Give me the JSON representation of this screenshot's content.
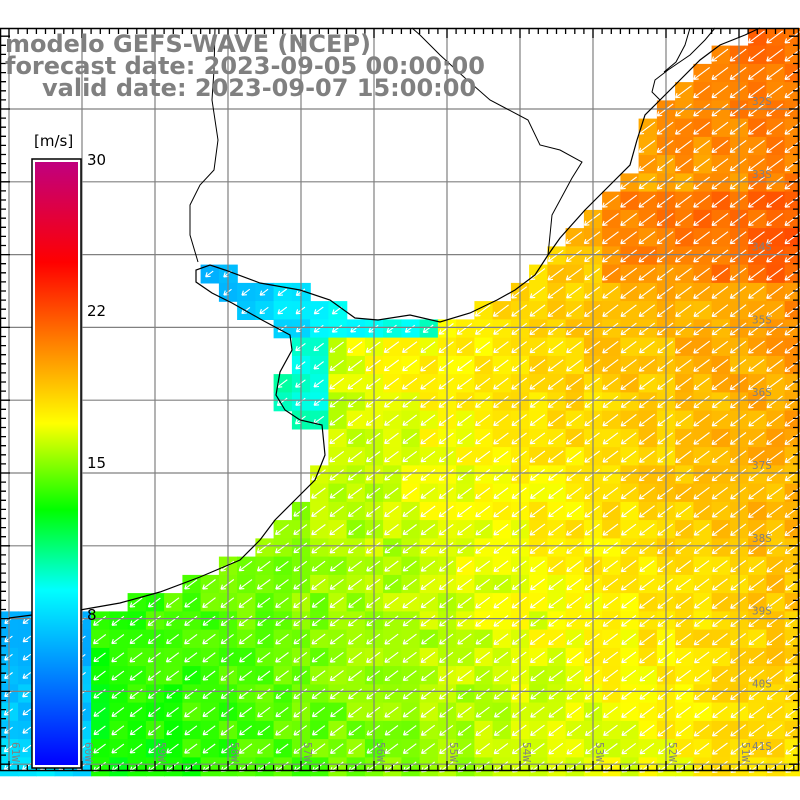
{
  "title": {
    "line1": "modelo GEFS-WAVE (NCEP)",
    "line2": "forecast date: 2023-09-05 00:00:00",
    "line3": "valid date: 2023-09-07 15:00:00"
  },
  "colorbar": {
    "unit": "[m/s]",
    "min": 0,
    "max": 30,
    "ticks": [
      {
        "value": 30,
        "label": "30"
      },
      {
        "value": 22,
        "label": "22"
      },
      {
        "value": 15,
        "label": "15"
      },
      {
        "value": 8,
        "label": "8"
      }
    ],
    "stops": [
      {
        "value": 0,
        "color": "#0000ff"
      },
      {
        "value": 8.7,
        "color": "#00ffff"
      },
      {
        "value": 12.7,
        "color": "#00ff00"
      },
      {
        "value": 17,
        "color": "#ffff00"
      },
      {
        "value": 21,
        "color": "#ff8000"
      },
      {
        "value": 25,
        "color": "#ff0000"
      },
      {
        "value": 30,
        "color": "#c0007f"
      }
    ]
  },
  "map": {
    "lat_labels": [
      "32S",
      "33S",
      "34S",
      "35S",
      "36S",
      "37S",
      "38S",
      "39S",
      "40S",
      "41S"
    ],
    "lon_labels": [
      "61W",
      "60W",
      "59W",
      "58W",
      "57W",
      "56W",
      "55W",
      "54W",
      "53W",
      "52W",
      "51W"
    ],
    "wind_direction": "SW",
    "colors": {
      "land": "#ffffff",
      "coast": "#000000",
      "grid": "#808080",
      "vectors": "#ffffff",
      "label": "#808080"
    }
  }
}
